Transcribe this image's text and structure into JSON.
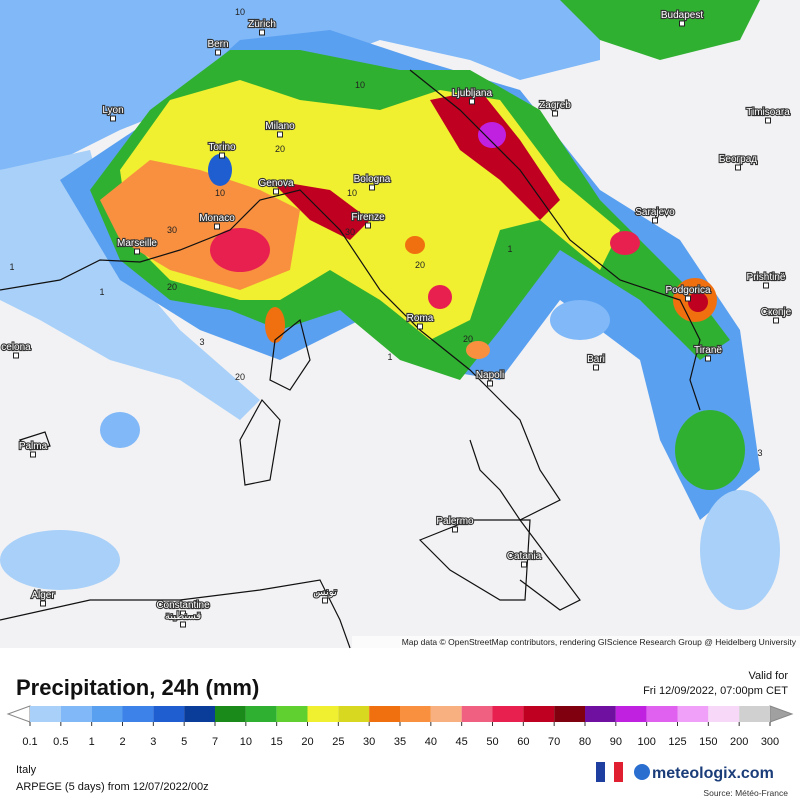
{
  "map": {
    "cities": [
      "Zürich",
      "Bern",
      "Budapest",
      "Lyon",
      "Torino",
      "Milano",
      "Ljubljana",
      "Zagreb",
      "Timisoara",
      "Београд",
      "Genova",
      "Bologna",
      "Monaco",
      "Firenze",
      "Marseille",
      "Sarajevo",
      "Prishtinë",
      "Podgorica",
      "Скопје",
      "Roma",
      "Tiranë",
      "Bari",
      "Napoli",
      "celona",
      "Palma",
      "Palermo",
      "Catania",
      "Alger",
      "Constantine",
      "قسنطينة",
      "تونس"
    ],
    "contour_labels": [
      10,
      10,
      20,
      10,
      10,
      30,
      20,
      30,
      20,
      1,
      20,
      1,
      3,
      20,
      1,
      1,
      3
    ],
    "attribution": "Map data © OpenStreetMap contributors, rendering GIScience Research Group @ Heidelberg University"
  },
  "footer": {
    "title": "Precipitation, 24h (mm)",
    "valid_label": "Valid for",
    "valid_time": "Fri 12/09/2022, 07:00pm CET",
    "region": "Italy",
    "model": "ARPEGE (5 days)  from  12/07/2022/00z",
    "brand": "meteologix.com",
    "source": "Source: Météo-France"
  },
  "legend": {
    "ticks": [
      0.1,
      0.5,
      1,
      2,
      3,
      5,
      7,
      10,
      15,
      20,
      25,
      30,
      35,
      40,
      45,
      50,
      60,
      70,
      80,
      90,
      100,
      125,
      150,
      200,
      300
    ],
    "below_color": "#ffffff",
    "above_color": "#a0a0a0",
    "colors": [
      "#a8d0f8",
      "#80b8f8",
      "#5aa0f0",
      "#3c82e8",
      "#1e5ed0",
      "#0a3c9a",
      "#1a8a1a",
      "#30b030",
      "#60d030",
      "#f0f030",
      "#d8d820",
      "#f07010",
      "#f89040",
      "#f8b080",
      "#f06080",
      "#e82050",
      "#c00020",
      "#800010",
      "#7010a0",
      "#c020e0",
      "#e060f0",
      "#f0a0f8",
      "#f8d8f8",
      "#d0d0d0"
    ]
  }
}
